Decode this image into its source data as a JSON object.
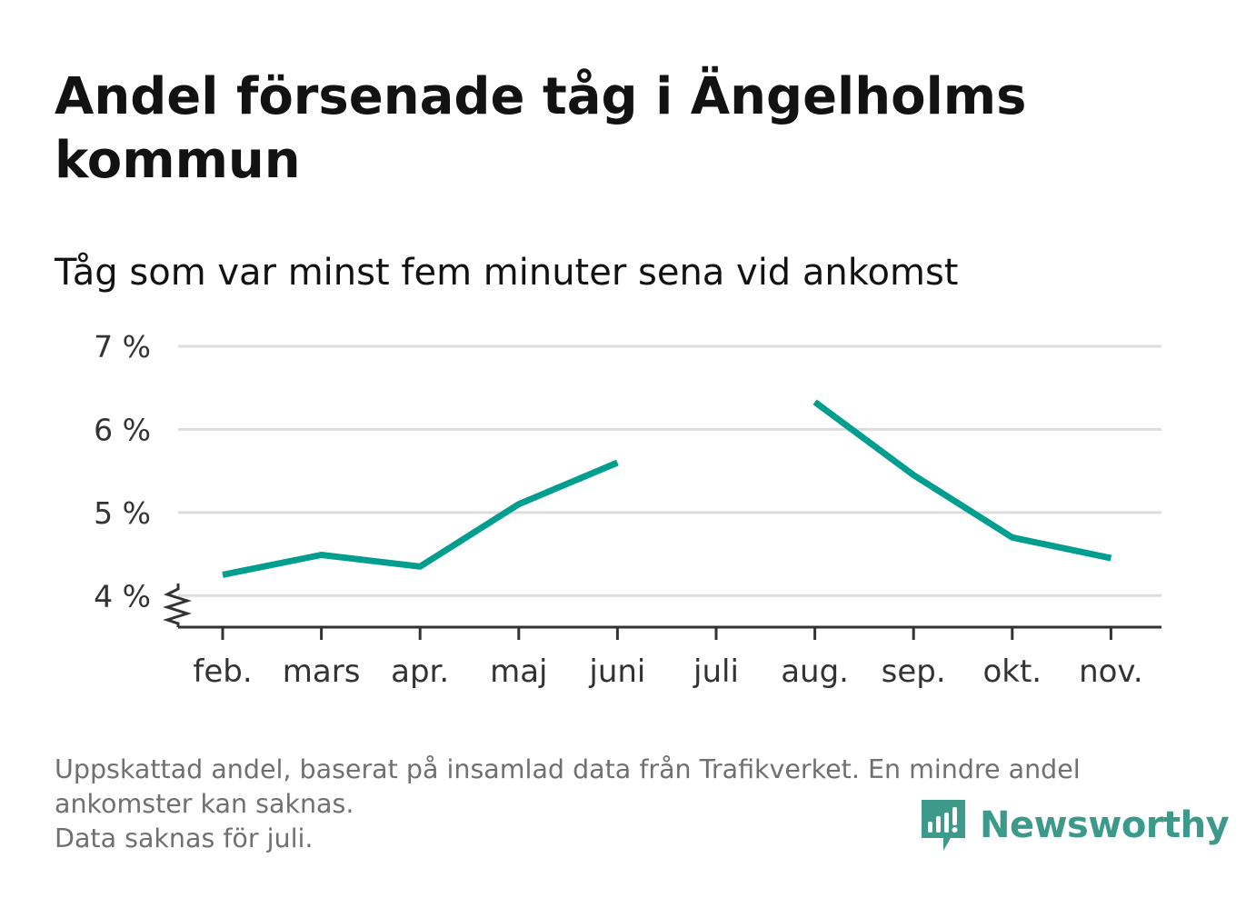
{
  "colors": {
    "line": "#009e8e",
    "title": "#121212",
    "text": "#333333",
    "muted": "#707070",
    "grid": "#dddddd",
    "axis": "#333333",
    "brand": "#3d9a8b"
  },
  "footnote": {
    "line1": "Uppskattad andel, baserat på insamlad data från Trafikverket. En mindre andel",
    "line2": "ankomster kan saknas.",
    "line3": "Data saknas för juli."
  },
  "brand": {
    "name": "Newsworthy",
    "icon": "newsworthy-logo-icon"
  },
  "chart_data": {
    "type": "line",
    "title": "Andel försenade tåg i Ängelholms kommun",
    "subtitle": "Tåg som var minst fem minuter sena vid ankomst",
    "xlabel": "",
    "ylabel": "",
    "categories": [
      "feb.",
      "mars",
      "apr.",
      "maj",
      "juni",
      "juli",
      "aug.",
      "sep.",
      "okt.",
      "nov."
    ],
    "series": [
      {
        "values": [
          4.25,
          4.49,
          4.35,
          5.1,
          5.6,
          null,
          6.33,
          5.45,
          4.7,
          4.45
        ]
      }
    ],
    "y_ticks": [
      4,
      5,
      6,
      7
    ],
    "y_tick_labels": [
      "4 %",
      "5 %",
      "6 %",
      "7 %"
    ],
    "ylim": [
      3.62,
      7
    ],
    "y_axis_break": true,
    "grid": true,
    "legend": "none"
  }
}
